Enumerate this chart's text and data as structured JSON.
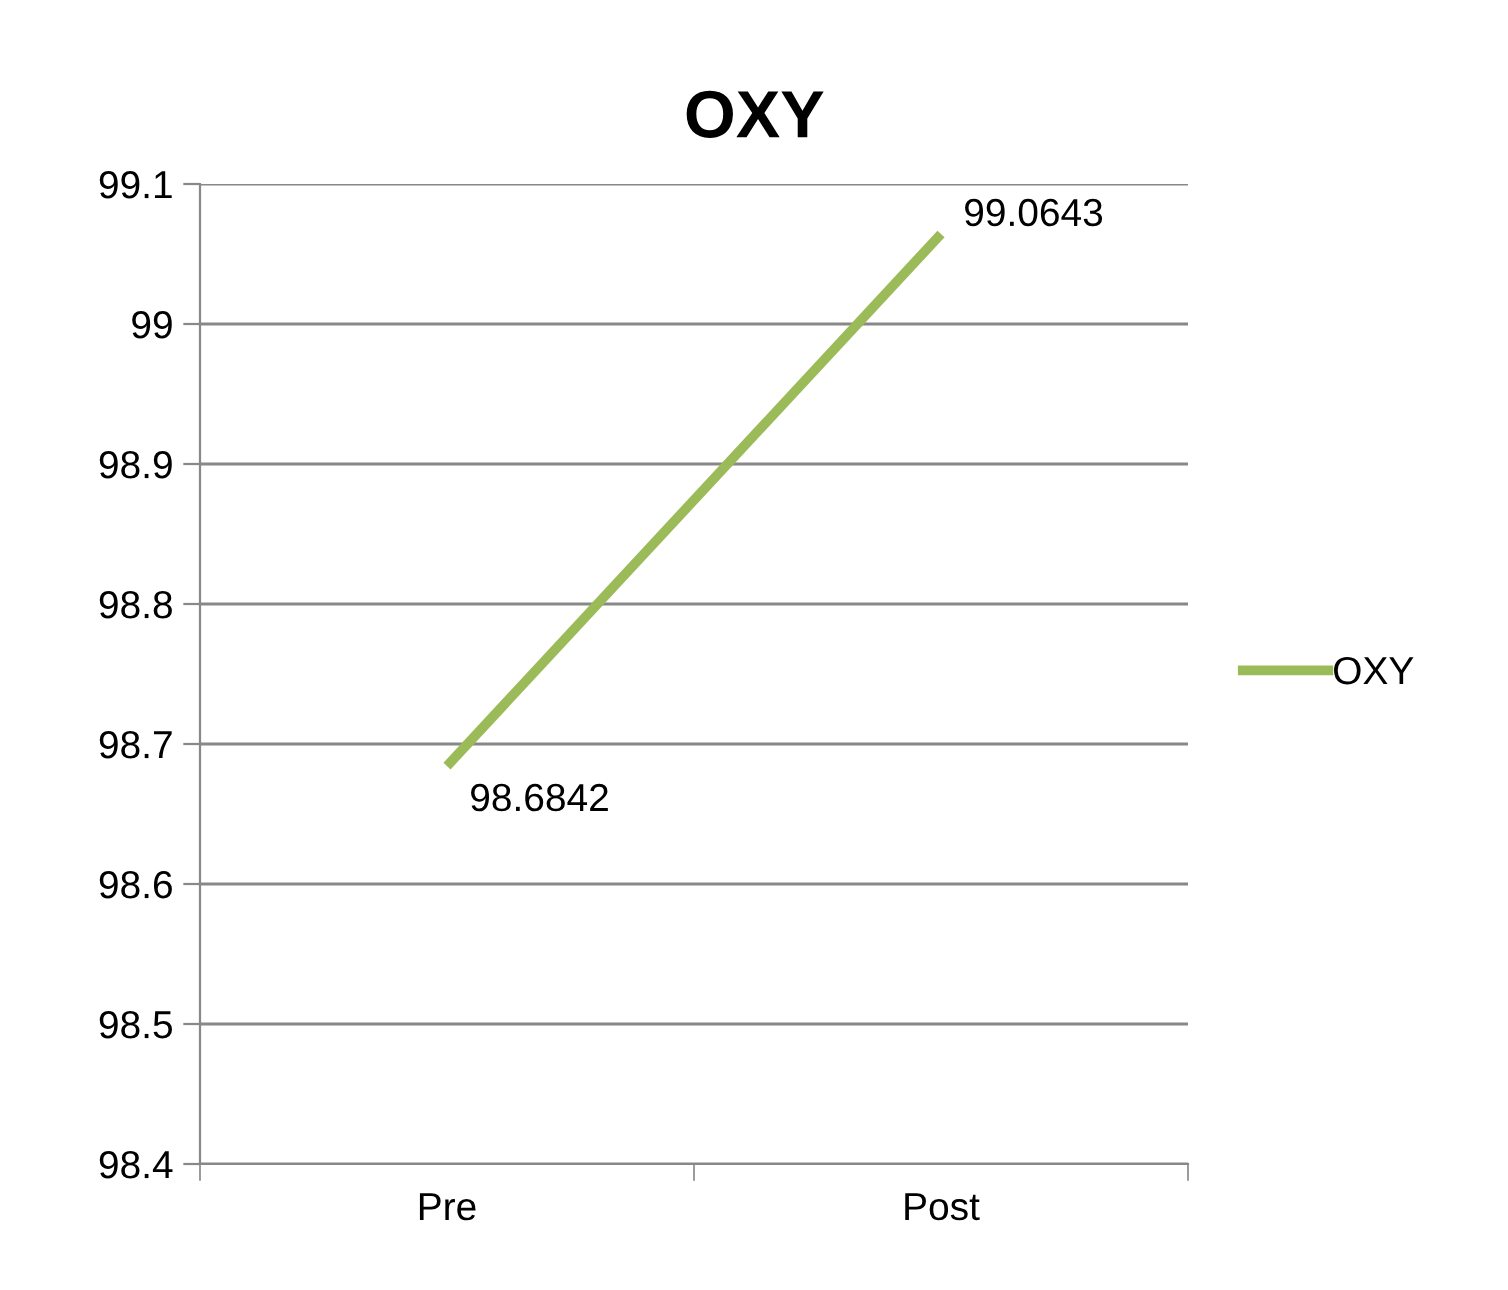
{
  "chart_data": {
    "type": "line",
    "title": "OXY",
    "categories": [
      "Pre",
      "Post"
    ],
    "series": [
      {
        "name": "OXY",
        "color": "#9bbb59",
        "values": [
          98.6842,
          99.0643
        ]
      }
    ],
    "ylim": [
      98.4,
      99.1
    ],
    "yticks": [
      {
        "value": 98.4,
        "label": "98.4"
      },
      {
        "value": 98.5,
        "label": "98.5"
      },
      {
        "value": 98.6,
        "label": "98.6"
      },
      {
        "value": 98.7,
        "label": "98.7"
      },
      {
        "value": 98.8,
        "label": "98.8"
      },
      {
        "value": 98.9,
        "label": "98.9"
      },
      {
        "value": 99,
        "label": "99"
      },
      {
        "value": 99.1,
        "label": "99.1"
      }
    ],
    "grid": "y",
    "legend": "right",
    "data_labels": true,
    "marker": "none"
  }
}
